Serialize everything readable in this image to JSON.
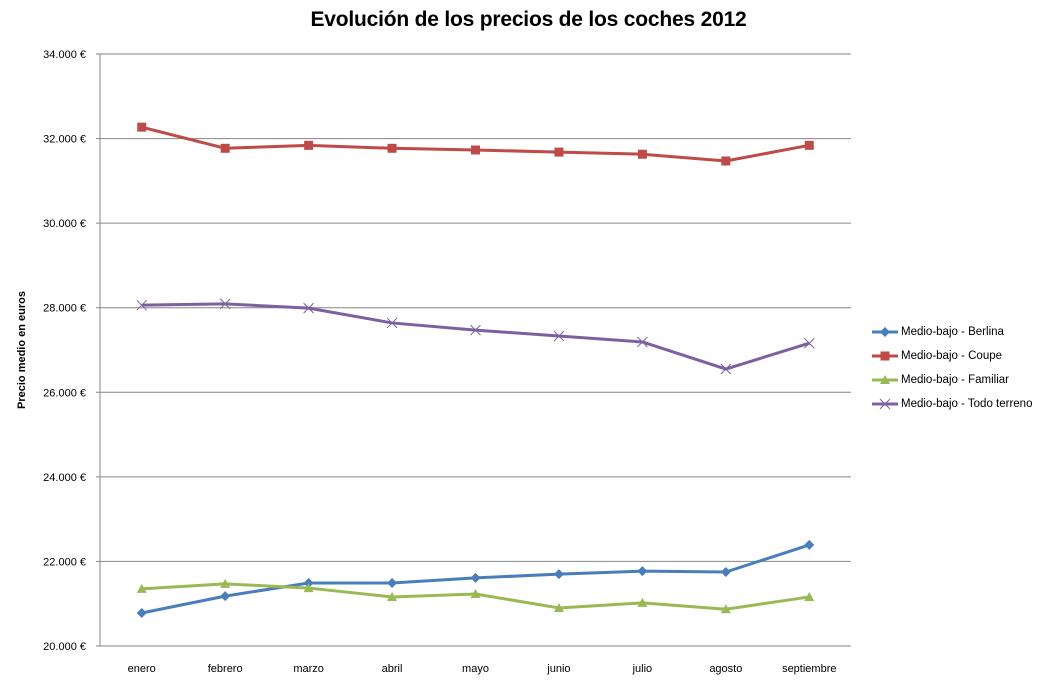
{
  "chart_data": {
    "type": "line",
    "title": "Evolución de los precios de los coches 2012",
    "xlabel": "",
    "ylabel": "Precio medio en euros",
    "categories": [
      "enero",
      "febrero",
      "marzo",
      "abril",
      "mayo",
      "junio",
      "julio",
      "agosto",
      "septiembre"
    ],
    "ylim": [
      20000,
      34000
    ],
    "ytick_step": 2000,
    "ytick_labels": [
      "20.000 €",
      "22.000 €",
      "24.000 €",
      "26.000 €",
      "28.000 €",
      "30.000 €",
      "32.000 €",
      "34.000 €"
    ],
    "grid": "horizontal",
    "legend_position": "right",
    "series": [
      {
        "name": "Medio-bajo - Berlina",
        "color": "#4a7ebb",
        "marker": "diamond",
        "values": [
          20780,
          21180,
          21490,
          21490,
          21610,
          21700,
          21770,
          21750,
          22390
        ]
      },
      {
        "name": "Medio-bajo - Coupe",
        "color": "#be4b48",
        "marker": "square",
        "values": [
          32270,
          31770,
          31840,
          31770,
          31730,
          31680,
          31630,
          31470,
          31840
        ]
      },
      {
        "name": "Medio-bajo - Familiar",
        "color": "#98b954",
        "marker": "triangle",
        "values": [
          21350,
          21470,
          21370,
          21160,
          21230,
          20900,
          21020,
          20870,
          21160
        ]
      },
      {
        "name": "Medio-bajo - Todo terreno",
        "color": "#7d60a0",
        "marker": "x",
        "values": [
          28060,
          28090,
          27990,
          27640,
          27470,
          27330,
          27190,
          26550,
          27160
        ]
      }
    ]
  }
}
